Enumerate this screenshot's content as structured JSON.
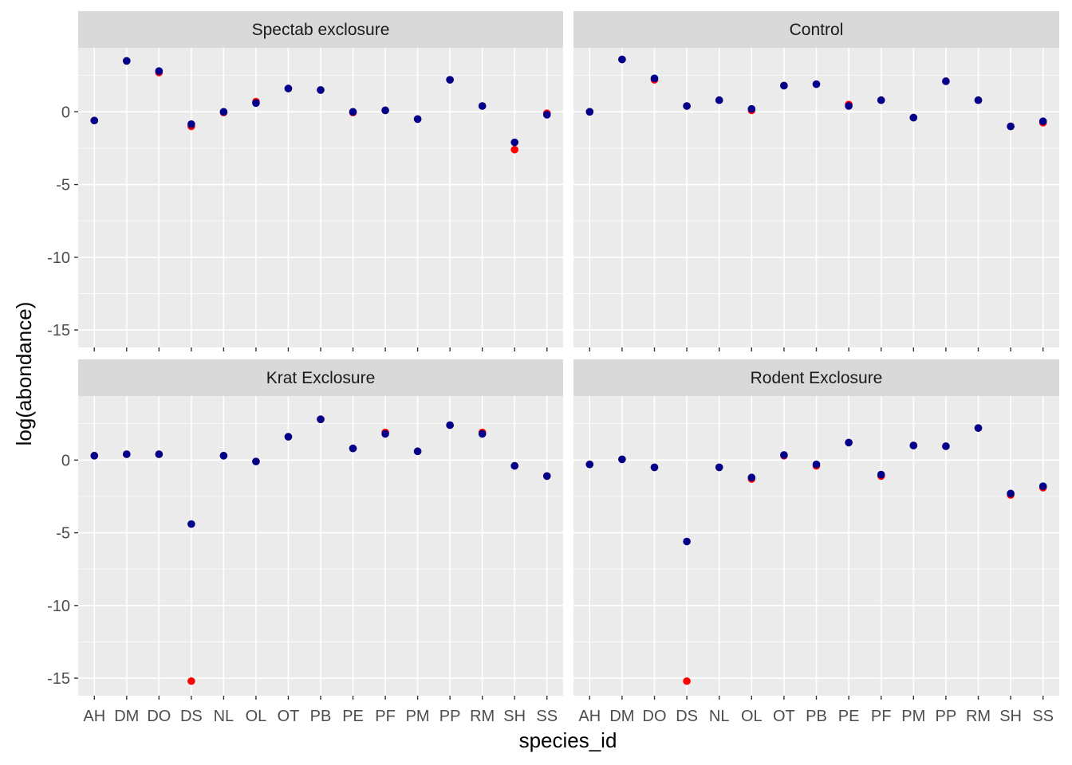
{
  "chart_data": {
    "type": "scatter",
    "layout": "facet-grid-2x2",
    "xlabel": "species_id",
    "ylabel": "log(abondance)",
    "ylim": [
      -16.2,
      4.4
    ],
    "y_ticks": [
      -15,
      -10,
      -5,
      0
    ],
    "y_tick_labels": [
      "-15",
      "-10",
      "-5",
      "0"
    ],
    "categories": [
      "AH",
      "DM",
      "DO",
      "DS",
      "NL",
      "OL",
      "OT",
      "PB",
      "PE",
      "PF",
      "PM",
      "PP",
      "RM",
      "SH",
      "SS"
    ],
    "colors": {
      "series_red": "#ff0000",
      "series_navy": "#00008b",
      "panel_bg": "#ebebeb",
      "strip_bg": "#d9d9d9",
      "grid": "#ffffff"
    },
    "legend": "none",
    "grid": true,
    "panels": [
      {
        "title": "Spectab exclosure",
        "series": [
          {
            "color": "#ff0000",
            "values": [
              -0.6,
              3.5,
              2.7,
              -1.0,
              -0.05,
              0.7,
              1.6,
              1.5,
              -0.05,
              0.1,
              -0.5,
              2.2,
              0.4,
              -2.6,
              -0.1
            ]
          },
          {
            "color": "#00008b",
            "values": [
              -0.6,
              3.5,
              2.8,
              -0.85,
              0.0,
              0.6,
              1.6,
              1.5,
              0.0,
              0.1,
              -0.5,
              2.2,
              0.4,
              -2.1,
              -0.2
            ]
          }
        ]
      },
      {
        "title": "Control",
        "series": [
          {
            "color": "#ff0000",
            "values": [
              0.0,
              3.6,
              2.2,
              0.4,
              0.8,
              0.1,
              1.8,
              1.9,
              0.5,
              0.8,
              -0.4,
              2.1,
              0.8,
              -1.0,
              -0.75
            ]
          },
          {
            "color": "#00008b",
            "values": [
              0.0,
              3.6,
              2.3,
              0.4,
              0.8,
              0.2,
              1.8,
              1.9,
              0.4,
              0.8,
              -0.4,
              2.1,
              0.8,
              -1.0,
              -0.65
            ]
          }
        ]
      },
      {
        "title": "Krat Exclosure",
        "series": [
          {
            "color": "#ff0000",
            "values": [
              0.3,
              0.4,
              0.4,
              -15.2,
              0.3,
              -0.1,
              1.6,
              2.8,
              0.8,
              1.9,
              0.6,
              2.4,
              1.9,
              -0.4,
              -1.1
            ]
          },
          {
            "color": "#00008b",
            "values": [
              0.3,
              0.4,
              0.4,
              -4.4,
              0.3,
              -0.1,
              1.6,
              2.8,
              0.8,
              1.8,
              0.6,
              2.4,
              1.8,
              -0.4,
              -1.1
            ]
          }
        ]
      },
      {
        "title": "Rodent Exclosure",
        "series": [
          {
            "color": "#ff0000",
            "values": [
              -0.3,
              0.05,
              -0.5,
              -15.2,
              -0.5,
              -1.3,
              0.3,
              -0.4,
              1.2,
              -1.1,
              1.0,
              0.95,
              2.2,
              -2.4,
              -1.9
            ]
          },
          {
            "color": "#00008b",
            "values": [
              -0.3,
              0.05,
              -0.5,
              -5.6,
              -0.5,
              -1.2,
              0.35,
              -0.3,
              1.2,
              -1.0,
              1.0,
              0.95,
              2.2,
              -2.3,
              -1.8
            ]
          }
        ]
      }
    ]
  }
}
